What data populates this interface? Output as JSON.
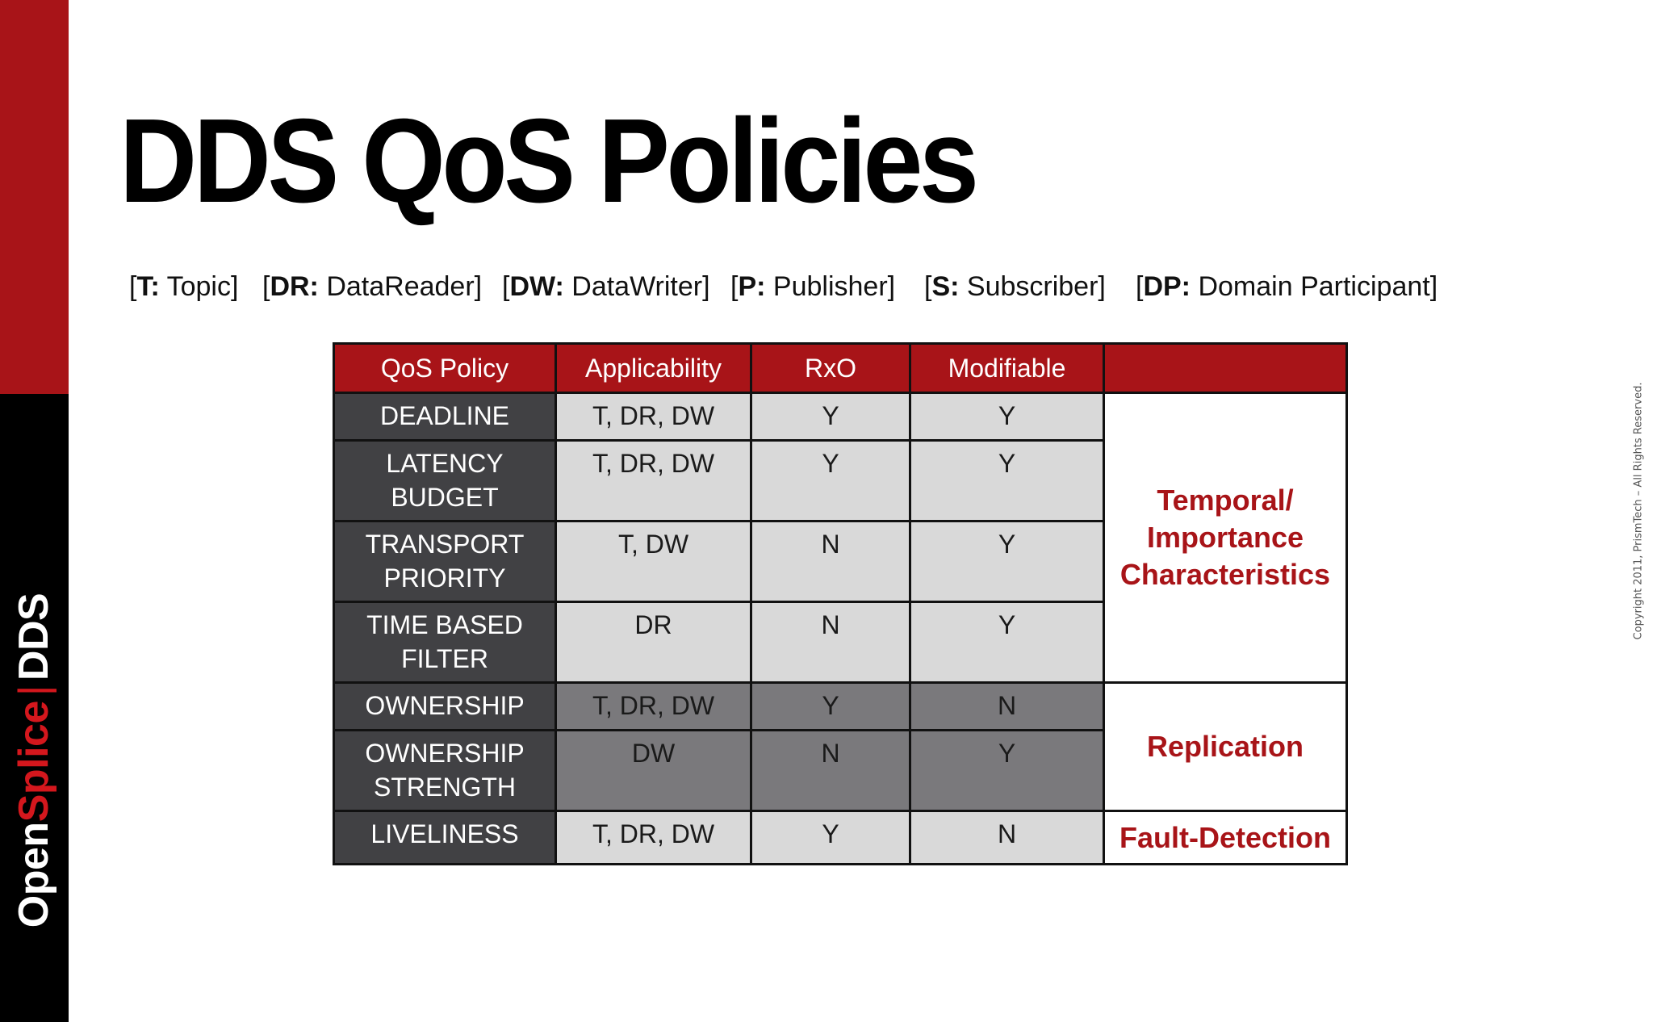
{
  "sidebar": {
    "brand_open": "Open",
    "brand_splice": "Splice",
    "brand_separator": "|",
    "brand_dds": "DDS",
    "colors": {
      "red": "#a81418",
      "black": "#000000",
      "accent": "#d4171d"
    }
  },
  "title": "DDS QoS Policies",
  "legend": [
    {
      "key": "T:",
      "label": " Topic"
    },
    {
      "key": "DR:",
      "label": " DataReader"
    },
    {
      "key": "DW:",
      "label": " DataWriter"
    },
    {
      "key": "P:",
      "label": " Publisher"
    },
    {
      "key": "S:",
      "label": " Subscriber"
    },
    {
      "key": "DP:",
      "label": " Domain Participant"
    }
  ],
  "table": {
    "headers": [
      "QoS Policy",
      "Applicability",
      "RxO",
      "Modifiable",
      ""
    ],
    "rows": [
      {
        "policy": "DEADLINE",
        "applicability": "T, DR, DW",
        "rxo": "Y",
        "modifiable": "Y"
      },
      {
        "policy": "LATENCY BUDGET",
        "applicability": "T, DR, DW",
        "rxo": "Y",
        "modifiable": "Y"
      },
      {
        "policy": "TRANSPORT PRIORITY",
        "applicability": "T, DW",
        "rxo": "N",
        "modifiable": "Y"
      },
      {
        "policy": "TIME BASED FILTER",
        "applicability": "DR",
        "rxo": "N",
        "modifiable": "Y"
      },
      {
        "policy": "OWNERSHIP",
        "applicability": "T, DR, DW",
        "rxo": "Y",
        "modifiable": "N"
      },
      {
        "policy": "OWNERSHIP STRENGTH",
        "applicability": "DW",
        "rxo": "N",
        "modifiable": "Y"
      },
      {
        "policy": "LIVELINESS",
        "applicability": "T, DR, DW",
        "rxo": "Y",
        "modifiable": "N"
      }
    ],
    "categories": {
      "temporal_line1": "Temporal/",
      "temporal_line2": "Importance",
      "temporal_line3": "Characteristics",
      "replication": "Replication",
      "fault_detection": "Fault-Detection"
    },
    "colors": {
      "header_bg": "#a81418",
      "policy_bg": "#414144",
      "value_light_bg": "#d9d9d9",
      "value_dark_bg": "#7a797c",
      "category_text": "#a81418"
    }
  },
  "copyright": "Copyright 2011, PrismTech –  All Rights Reserved."
}
